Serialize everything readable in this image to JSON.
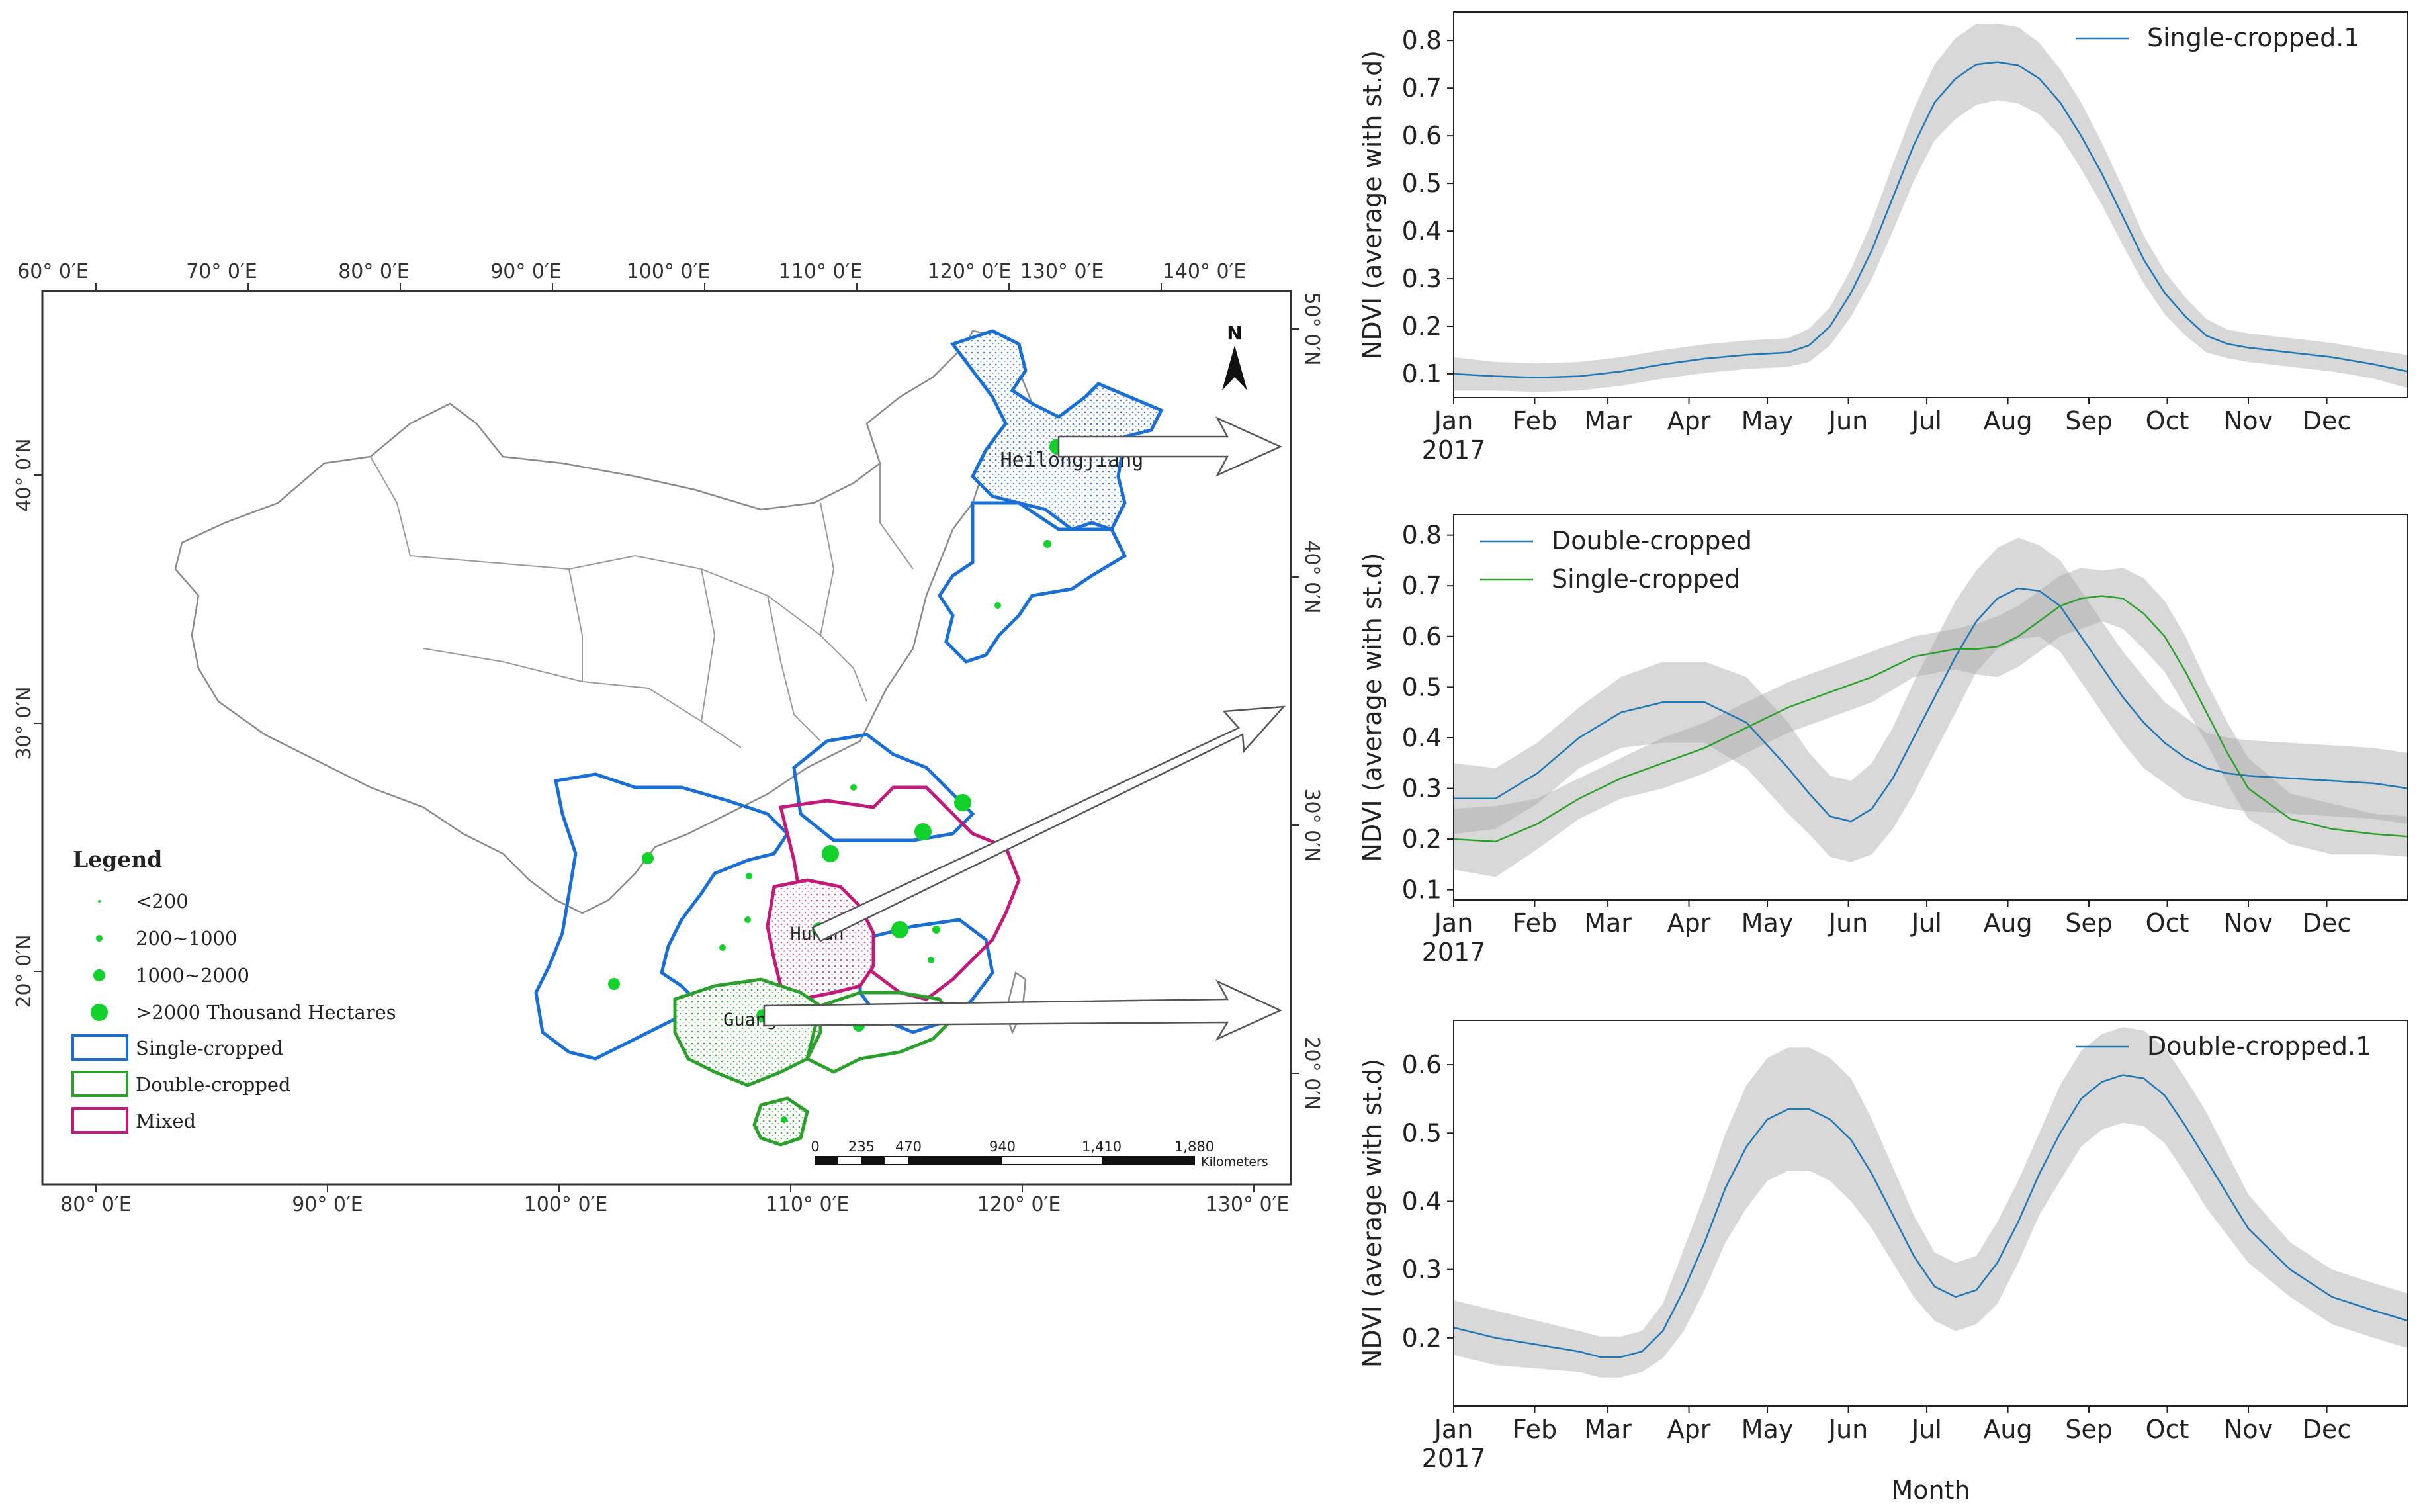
{
  "colors": {
    "single": "#1f77b4",
    "double": "#2ca02c",
    "mixed": "#c2197a",
    "band": "#d0d0d0",
    "point": "#12d12a",
    "boundary": "#777777"
  },
  "map": {
    "top_axis_labels": [
      "60° 0′E",
      "70° 0′E",
      "80° 0′E",
      "90° 0′E",
      "100° 0′E",
      "110° 0′E",
      "120° 0′E",
      "130° 0′E",
      "140° 0′E"
    ],
    "bottom_axis_labels": [
      "80° 0′E",
      "90° 0′E",
      "100° 0′E",
      "110° 0′E",
      "120° 0′E",
      "130° 0′E"
    ],
    "left_axis_labels": [
      "40° 0′N",
      "30° 0′N",
      "20° 0′N"
    ],
    "right_axis_labels": [
      "50° 0′N",
      "40° 0′N",
      "30° 0′N",
      "20° 0′N"
    ],
    "north_label": "N",
    "province_labels": {
      "heilongjiang": "Heilongjiang",
      "hunan": "Hunan",
      "guangxi": "Guangxi"
    },
    "legend": {
      "title": "Legend",
      "items": [
        "<200",
        "200~1000",
        "1000~2000",
        ">2000 Thousand Hectares",
        "Single-cropped",
        "Double-cropped",
        "Mixed"
      ]
    },
    "scale_bar": {
      "labels": [
        "0",
        "235",
        "470",
        "940",
        "1,410",
        "1,880"
      ],
      "unit": "Kilometers"
    }
  },
  "chart_data": [
    {
      "type": "line",
      "title": "",
      "xlabel": "",
      "ylabel": "NDVI (average with st.d)",
      "x_tick_labels": [
        "Jan\n2017",
        "Feb",
        "Mar",
        "Apr",
        "May",
        "Jun",
        "Jul",
        "Aug",
        "Sep",
        "Oct",
        "Nov",
        "Dec"
      ],
      "xlim": [
        0,
        365
      ],
      "ylim": [
        0.05,
        0.86
      ],
      "y_ticks": [
        0.1,
        0.2,
        0.3,
        0.4,
        0.5,
        0.6,
        0.7,
        0.8
      ],
      "legend": "top-right",
      "series": [
        {
          "name": "Single-cropped.1",
          "color_key": "single",
          "x": [
            0,
            16,
            32,
            48,
            64,
            80,
            96,
            112,
            128,
            136,
            144,
            152,
            160,
            168,
            176,
            184,
            192,
            200,
            208,
            216,
            224,
            232,
            240,
            248,
            256,
            264,
            272,
            280,
            288,
            296,
            304,
            320,
            336,
            352,
            365
          ],
          "mean": [
            0.1,
            0.095,
            0.092,
            0.095,
            0.105,
            0.12,
            0.132,
            0.14,
            0.145,
            0.16,
            0.2,
            0.27,
            0.36,
            0.47,
            0.58,
            0.67,
            0.72,
            0.75,
            0.755,
            0.748,
            0.72,
            0.67,
            0.6,
            0.52,
            0.43,
            0.34,
            0.27,
            0.22,
            0.18,
            0.163,
            0.155,
            0.145,
            0.135,
            0.12,
            0.105
          ],
          "std": [
            0.035,
            0.03,
            0.03,
            0.03,
            0.03,
            0.03,
            0.03,
            0.03,
            0.03,
            0.035,
            0.04,
            0.05,
            0.06,
            0.07,
            0.075,
            0.08,
            0.085,
            0.085,
            0.08,
            0.08,
            0.075,
            0.07,
            0.07,
            0.065,
            0.06,
            0.05,
            0.045,
            0.04,
            0.035,
            0.03,
            0.03,
            0.03,
            0.03,
            0.03,
            0.035
          ]
        }
      ]
    },
    {
      "type": "line",
      "title": "",
      "xlabel": "",
      "ylabel": "NDVI (average with st.d)",
      "x_tick_labels": [
        "Jan\n2017",
        "Feb",
        "Mar",
        "Apr",
        "May",
        "Jun",
        "Jul",
        "Aug",
        "Sep",
        "Oct",
        "Nov",
        "Dec"
      ],
      "xlim": [
        0,
        365
      ],
      "ylim": [
        0.08,
        0.84
      ],
      "y_ticks": [
        0.1,
        0.2,
        0.3,
        0.4,
        0.5,
        0.6,
        0.7,
        0.8
      ],
      "legend": "top-left",
      "series": [
        {
          "name": "Double-cropped",
          "color_key": "single",
          "x": [
            0,
            16,
            32,
            48,
            64,
            80,
            96,
            112,
            128,
            136,
            144,
            152,
            160,
            168,
            176,
            184,
            192,
            200,
            208,
            216,
            224,
            232,
            240,
            248,
            256,
            264,
            272,
            280,
            288,
            296,
            304,
            320,
            336,
            352,
            365
          ],
          "mean": [
            0.28,
            0.28,
            0.33,
            0.4,
            0.45,
            0.47,
            0.47,
            0.43,
            0.34,
            0.29,
            0.245,
            0.235,
            0.26,
            0.32,
            0.4,
            0.48,
            0.56,
            0.63,
            0.675,
            0.695,
            0.69,
            0.66,
            0.6,
            0.54,
            0.48,
            0.43,
            0.39,
            0.36,
            0.34,
            0.33,
            0.325,
            0.32,
            0.315,
            0.31,
            0.3
          ],
          "std": [
            0.07,
            0.06,
            0.06,
            0.06,
            0.07,
            0.08,
            0.08,
            0.09,
            0.09,
            0.08,
            0.08,
            0.08,
            0.09,
            0.1,
            0.11,
            0.11,
            0.11,
            0.1,
            0.1,
            0.1,
            0.09,
            0.09,
            0.09,
            0.09,
            0.09,
            0.09,
            0.08,
            0.08,
            0.07,
            0.07,
            0.07,
            0.07,
            0.07,
            0.07,
            0.07
          ]
        },
        {
          "name": "Single-cropped",
          "color_key": "double",
          "x": [
            0,
            16,
            32,
            48,
            64,
            80,
            96,
            112,
            128,
            144,
            160,
            176,
            192,
            200,
            208,
            216,
            224,
            232,
            240,
            248,
            256,
            264,
            272,
            280,
            288,
            296,
            304,
            320,
            336,
            352,
            365
          ],
          "mean": [
            0.2,
            0.195,
            0.23,
            0.28,
            0.32,
            0.35,
            0.38,
            0.42,
            0.46,
            0.49,
            0.52,
            0.56,
            0.575,
            0.575,
            0.58,
            0.6,
            0.63,
            0.66,
            0.675,
            0.68,
            0.675,
            0.645,
            0.6,
            0.53,
            0.45,
            0.37,
            0.3,
            0.24,
            0.22,
            0.21,
            0.205
          ],
          "std": [
            0.06,
            0.07,
            0.05,
            0.04,
            0.04,
            0.05,
            0.05,
            0.05,
            0.05,
            0.05,
            0.05,
            0.04,
            0.04,
            0.05,
            0.06,
            0.06,
            0.06,
            0.06,
            0.06,
            0.05,
            0.06,
            0.07,
            0.07,
            0.07,
            0.06,
            0.06,
            0.06,
            0.05,
            0.05,
            0.04,
            0.04
          ]
        }
      ]
    },
    {
      "type": "line",
      "title": "",
      "xlabel": "Month",
      "ylabel": "NDVI (average with st.d)",
      "x_tick_labels": [
        "Jan\n2017",
        "Feb",
        "Mar",
        "Apr",
        "May",
        "Jun",
        "Jul",
        "Aug",
        "Sep",
        "Oct",
        "Nov",
        "Dec"
      ],
      "xlim": [
        0,
        365
      ],
      "ylim": [
        0.1,
        0.665
      ],
      "y_ticks": [
        0.2,
        0.3,
        0.4,
        0.5,
        0.6
      ],
      "legend": "top-right",
      "series": [
        {
          "name": "Double-cropped.1",
          "color_key": "single",
          "x": [
            0,
            16,
            32,
            48,
            56,
            64,
            72,
            80,
            88,
            96,
            104,
            112,
            120,
            128,
            136,
            144,
            152,
            160,
            168,
            176,
            184,
            192,
            200,
            208,
            216,
            224,
            232,
            240,
            248,
            256,
            264,
            272,
            280,
            288,
            296,
            304,
            320,
            336,
            352,
            365
          ],
          "mean": [
            0.215,
            0.2,
            0.19,
            0.18,
            0.172,
            0.172,
            0.18,
            0.21,
            0.27,
            0.34,
            0.42,
            0.48,
            0.52,
            0.535,
            0.535,
            0.52,
            0.49,
            0.44,
            0.38,
            0.32,
            0.275,
            0.26,
            0.27,
            0.31,
            0.37,
            0.44,
            0.5,
            0.55,
            0.575,
            0.585,
            0.58,
            0.555,
            0.51,
            0.46,
            0.41,
            0.36,
            0.3,
            0.26,
            0.24,
            0.225
          ],
          "std": [
            0.04,
            0.04,
            0.035,
            0.03,
            0.03,
            0.03,
            0.03,
            0.04,
            0.06,
            0.07,
            0.08,
            0.09,
            0.09,
            0.09,
            0.09,
            0.09,
            0.09,
            0.08,
            0.07,
            0.06,
            0.05,
            0.05,
            0.05,
            0.06,
            0.06,
            0.06,
            0.07,
            0.07,
            0.07,
            0.07,
            0.07,
            0.07,
            0.07,
            0.07,
            0.06,
            0.05,
            0.04,
            0.04,
            0.04,
            0.04
          ]
        }
      ]
    }
  ]
}
